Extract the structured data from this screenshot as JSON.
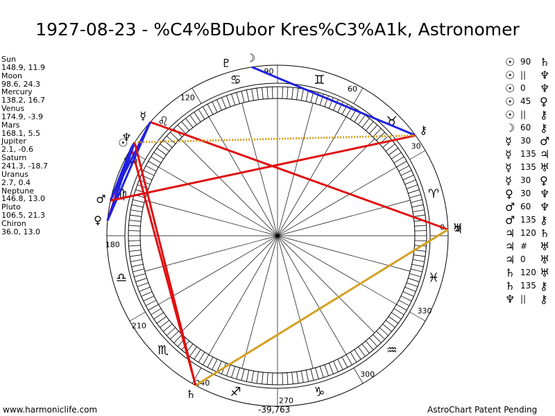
{
  "title": "1927-08-23 - %C4%BDubor Kres%C3%A1k, Astronomer",
  "planets": [
    {
      "name": "Sun",
      "values": "148.9, 11.9",
      "lon": 148.9,
      "glyph": "☉"
    },
    {
      "name": "Moon",
      "values": "98.6, 24.3",
      "lon": 98.6,
      "glyph": "☽"
    },
    {
      "name": "Mercury",
      "values": "138.2, 16.7",
      "lon": 138.2,
      "glyph": "☿"
    },
    {
      "name": "Venus",
      "values": "174.9, -3.9",
      "lon": 174.9,
      "glyph": "♀"
    },
    {
      "name": "Mars",
      "values": "168.1, 5.5",
      "lon": 168.1,
      "glyph": "♂"
    },
    {
      "name": "Jupiter",
      "values": "2.1, -0.6",
      "lon": 2.1,
      "glyph": "♃"
    },
    {
      "name": "Saturn",
      "values": "241.3, -18.7",
      "lon": 241.3,
      "glyph": "♄"
    },
    {
      "name": "Uranus",
      "values": "2.7, 0.4",
      "lon": 2.7,
      "glyph": "♅"
    },
    {
      "name": "Neptune",
      "values": "146.8, 13.0",
      "lon": 146.8,
      "glyph": "♆"
    },
    {
      "name": "Pluto",
      "values": "106.5, 21.3",
      "lon": 106.5,
      "glyph": "♇"
    },
    {
      "name": "Chiron",
      "values": "36.0, 13.0",
      "lon": 36.0,
      "glyph": "⚷"
    }
  ],
  "degree_labels": [
    {
      "deg": 0,
      "text": "0"
    },
    {
      "deg": 30,
      "text": "30"
    },
    {
      "deg": 60,
      "text": "60"
    },
    {
      "deg": 90,
      "text": "90"
    },
    {
      "deg": 120,
      "text": "120"
    },
    {
      "deg": 150,
      "text": "150"
    },
    {
      "deg": 180,
      "text": "180"
    },
    {
      "deg": 210,
      "text": "210"
    },
    {
      "deg": 240,
      "text": "240"
    },
    {
      "deg": 270,
      "text": "270"
    },
    {
      "deg": 300,
      "text": "300"
    },
    {
      "deg": 330,
      "text": "330"
    }
  ],
  "signs": [
    {
      "name": "aries",
      "glyph": "♈"
    },
    {
      "name": "taurus",
      "glyph": "♉"
    },
    {
      "name": "gemini",
      "glyph": "♊"
    },
    {
      "name": "cancer",
      "glyph": "♋"
    },
    {
      "name": "leo",
      "glyph": "♌"
    },
    {
      "name": "virgo",
      "glyph": "♍"
    },
    {
      "name": "libra",
      "glyph": "♎"
    },
    {
      "name": "scorpio",
      "glyph": "♏"
    },
    {
      "name": "sagittarius",
      "glyph": "♐"
    },
    {
      "name": "capricorn",
      "glyph": "♑"
    },
    {
      "name": "aquarius",
      "glyph": "♒"
    },
    {
      "name": "pisces",
      "glyph": "♓"
    }
  ],
  "aspects": [
    {
      "p1": "Sun",
      "angle": "90",
      "p2": "Saturn",
      "color": "#e01010"
    },
    {
      "p1": "Sun",
      "angle": "||",
      "p2": "Neptune",
      "color": "#2020e0"
    },
    {
      "p1": "Sun",
      "angle": "0",
      "p2": "Neptune",
      "color": "#2020e0"
    },
    {
      "p1": "Sun",
      "angle": "45",
      "p2": "Venus",
      "color": "#e01010"
    },
    {
      "p1": "Sun",
      "angle": "||",
      "p2": "Chiron",
      "color": "#2020e0"
    },
    {
      "p1": "Moon",
      "angle": "60",
      "p2": "Chiron",
      "color": "#2020e0"
    },
    {
      "p1": "Mercury",
      "angle": "30",
      "p2": "Mars",
      "color": "#2020e0"
    },
    {
      "p1": "Mercury",
      "angle": "135",
      "p2": "Jupiter",
      "color": "#e01010"
    },
    {
      "p1": "Mercury",
      "angle": "135",
      "p2": "Uranus",
      "color": "#e01010"
    },
    {
      "p1": "Mercury",
      "angle": "30",
      "p2": "Venus",
      "color": "#2020e0"
    },
    {
      "p1": "Venus",
      "angle": "30",
      "p2": "Neptune",
      "color": "#2020e0"
    },
    {
      "p1": "Mars",
      "angle": "60",
      "p2": "Neptune",
      "color": "#2020e0"
    },
    {
      "p1": "Mars",
      "angle": "135",
      "p2": "Chiron",
      "color": "#e01010"
    },
    {
      "p1": "Jupiter",
      "angle": "120",
      "p2": "Saturn",
      "color": "#d4a020"
    },
    {
      "p1": "Jupiter",
      "angle": "#",
      "p2": "Uranus",
      "color": "#d4a020"
    },
    {
      "p1": "Jupiter",
      "angle": "0",
      "p2": "Uranus",
      "color": "#d4a020"
    },
    {
      "p1": "Saturn",
      "angle": "120",
      "p2": "Uranus",
      "color": "#d4a020"
    },
    {
      "p1": "Saturn",
      "angle": "135",
      "p2": "Chiron",
      "color": "#e01010"
    },
    {
      "p1": "Neptune",
      "angle": "||",
      "p2": "Chiron",
      "color": "#2020e0"
    }
  ],
  "aspect_lines": [
    {
      "a": "Sun",
      "b": "Saturn",
      "color": "#e01010",
      "style": "solid"
    },
    {
      "a": "Sun",
      "b": "Venus",
      "color": "#e01010",
      "style": "solid"
    },
    {
      "a": "Sun",
      "b": "Mars",
      "color": "#2020e0",
      "style": "solid"
    },
    {
      "a": "Sun",
      "b": "Neptune",
      "color": "#2020e0",
      "style": "solid"
    },
    {
      "a": "Moon",
      "b": "Chiron",
      "color": "#2020e0",
      "style": "solid"
    },
    {
      "a": "Mercury",
      "b": "Jupiter",
      "color": "#e01010",
      "style": "solid"
    },
    {
      "a": "Mercury",
      "b": "Venus",
      "color": "#2020e0",
      "style": "solid"
    },
    {
      "a": "Mercury",
      "b": "Mars",
      "color": "#2020e0",
      "style": "solid"
    },
    {
      "a": "Venus",
      "b": "Neptune",
      "color": "#2020e0",
      "style": "solid"
    },
    {
      "a": "Mars",
      "b": "Neptune",
      "color": "#2020e0",
      "style": "solid"
    },
    {
      "a": "Mars",
      "b": "Chiron",
      "color": "#e01010",
      "style": "solid"
    },
    {
      "a": "Jupiter",
      "b": "Saturn",
      "color": "#d4a020",
      "style": "solid"
    },
    {
      "a": "Saturn",
      "b": "Neptune",
      "color": "#e01010",
      "style": "solid"
    },
    {
      "a": "Neptune",
      "b": "Chiron",
      "color": "#d4a020",
      "style": "dotted"
    }
  ],
  "footer": {
    "left": "www.harmoniclife.com",
    "center": "-39,763",
    "right": "AstroChart Patent Pending"
  },
  "colors": {
    "red": "#e01010",
    "blue": "#2020e0",
    "gold": "#d4a020"
  }
}
